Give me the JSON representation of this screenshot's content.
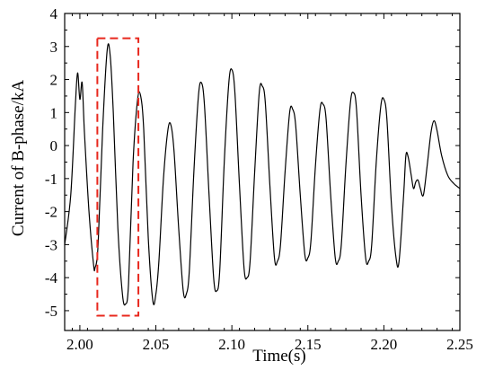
{
  "chart_data": {
    "type": "line",
    "xlabel": "Time(s)",
    "ylabel": "Current of B-phase/kA",
    "xlim": [
      1.99,
      2.25
    ],
    "ylim": [
      -5.6,
      4
    ],
    "xticks": [
      2.0,
      2.05,
      2.1,
      2.15,
      2.2,
      2.25
    ],
    "xtick_labels": [
      "2.00",
      "2.05",
      "2.10",
      "2.15",
      "2.20",
      "2.25"
    ],
    "yticks": [
      -5,
      -4,
      -3,
      -2,
      -1,
      0,
      1,
      2,
      3,
      4
    ],
    "ytick_labels": [
      "-5",
      "-4",
      "-3",
      "-2",
      "-1",
      "0",
      "1",
      "2",
      "3",
      "4"
    ],
    "grid": false,
    "series": [
      {
        "color": "#000000",
        "x": [
          1.99,
          1.994,
          1.997,
          1.9985,
          2.0,
          2.0015,
          2.003,
          2.006,
          2.009,
          2.01,
          2.012,
          2.015,
          2.018,
          2.02,
          2.022,
          2.025,
          2.028,
          2.03,
          2.032,
          2.035,
          2.038,
          2.04,
          2.042,
          2.045,
          2.048,
          2.05,
          2.052,
          2.055,
          2.058,
          2.06,
          2.062,
          2.065,
          2.068,
          2.07,
          2.072,
          2.075,
          2.078,
          2.08,
          2.082,
          2.085,
          2.088,
          2.09,
          2.092,
          2.095,
          2.098,
          2.1,
          2.102,
          2.105,
          2.108,
          2.11,
          2.112,
          2.115,
          2.118,
          2.12,
          2.122,
          2.125,
          2.128,
          2.13,
          2.132,
          2.135,
          2.138,
          2.14,
          2.142,
          2.145,
          2.148,
          2.15,
          2.152,
          2.155,
          2.158,
          2.16,
          2.162,
          2.165,
          2.168,
          2.17,
          2.172,
          2.175,
          2.178,
          2.18,
          2.182,
          2.185,
          2.188,
          2.19,
          2.192,
          2.195,
          2.198,
          2.2,
          2.202,
          2.205,
          2.208,
          2.21,
          2.213,
          2.2145,
          2.216,
          2.218,
          2.2195,
          2.221,
          2.2225,
          2.224,
          2.226,
          2.2285,
          2.231,
          2.233,
          2.235,
          2.238,
          2.242,
          2.246,
          2.25
        ],
        "y": [
          -3.0,
          -1.5,
          1.2,
          2.2,
          1.4,
          1.9,
          0.4,
          -2.0,
          -3.6,
          -3.7,
          -3.0,
          0.5,
          2.9,
          2.7,
          1.0,
          -2.5,
          -4.5,
          -4.8,
          -4.2,
          -0.5,
          1.4,
          1.5,
          0.5,
          -2.8,
          -4.7,
          -4.5,
          -3.5,
          -1.0,
          0.5,
          0.6,
          -0.2,
          -2.5,
          -4.4,
          -4.5,
          -3.8,
          -0.8,
          1.5,
          1.9,
          1.2,
          -1.5,
          -4.0,
          -4.4,
          -3.8,
          -0.5,
          1.9,
          2.3,
          1.6,
          -1.2,
          -3.7,
          -4.0,
          -3.5,
          -0.8,
          1.6,
          1.8,
          1.3,
          -1.2,
          -3.4,
          -3.5,
          -3.0,
          -0.8,
          1.0,
          1.1,
          0.6,
          -1.5,
          -3.3,
          -3.4,
          -2.9,
          -0.6,
          1.1,
          1.25,
          0.8,
          -1.5,
          -3.4,
          -3.5,
          -3.0,
          -0.6,
          1.3,
          1.6,
          1.1,
          -1.5,
          -3.4,
          -3.5,
          -3.0,
          -0.5,
          1.2,
          1.4,
          0.8,
          -1.8,
          -3.4,
          -3.5,
          -1.5,
          -0.3,
          -0.35,
          -0.9,
          -1.3,
          -1.1,
          -1.05,
          -1.3,
          -1.5,
          -0.6,
          0.4,
          0.75,
          0.45,
          -0.3,
          -0.9,
          -1.15,
          -1.3
        ]
      }
    ],
    "annotation": {
      "type": "dashed-rectangle",
      "color": "#e8281e",
      "x": [
        2.0115,
        2.0385
      ],
      "y": [
        -5.15,
        3.25
      ]
    }
  }
}
